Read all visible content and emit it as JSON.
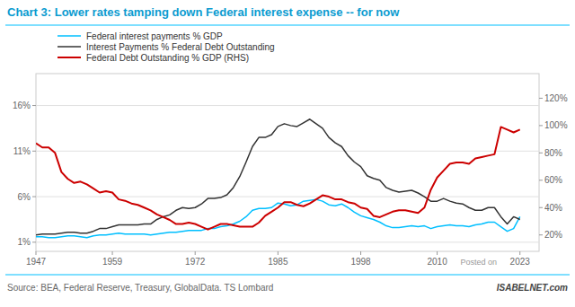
{
  "chart_data": {
    "type": "line",
    "title": "Chart 3: Lower rates tamping down Federal interest expense -- for now",
    "annotations": [
      "Posted on",
      "Source: BEA, Federal Reserve, Treasury, GlobalData. TS Lombard",
      "ISABELNET.com"
    ],
    "x": [
      1947,
      1948,
      1949,
      1950,
      1951,
      1952,
      1953,
      1954,
      1955,
      1956,
      1957,
      1958,
      1959,
      1960,
      1961,
      1962,
      1963,
      1964,
      1965,
      1966,
      1967,
      1968,
      1969,
      1970,
      1971,
      1972,
      1973,
      1974,
      1975,
      1976,
      1977,
      1978,
      1979,
      1980,
      1981,
      1982,
      1983,
      1984,
      1985,
      1986,
      1987,
      1988,
      1989,
      1990,
      1991,
      1992,
      1993,
      1994,
      1995,
      1996,
      1997,
      1998,
      1999,
      2000,
      2001,
      2002,
      2003,
      2004,
      2005,
      2006,
      2007,
      2008,
      2009,
      2010,
      2011,
      2012,
      2013,
      2014,
      2015,
      2016,
      2017,
      2018,
      2019,
      2020,
      2021,
      2022,
      2023
    ],
    "series": [
      {
        "name": "Federal interest payments % GDP",
        "color": "#00BFFF",
        "values": [
          1.6,
          1.6,
          1.5,
          1.5,
          1.6,
          1.7,
          1.7,
          1.6,
          1.5,
          1.7,
          1.8,
          1.8,
          1.9,
          2.0,
          1.9,
          1.9,
          1.9,
          1.9,
          1.8,
          1.9,
          2.0,
          2.1,
          2.1,
          2.2,
          2.3,
          2.3,
          2.3,
          2.5,
          2.5,
          2.7,
          2.8,
          3.0,
          3.3,
          3.8,
          4.5,
          4.7,
          4.7,
          4.8,
          5.3,
          5.2,
          5.0,
          5.1,
          5.5,
          5.6,
          5.7,
          5.5,
          5.1,
          5.0,
          5.2,
          4.8,
          4.3,
          3.9,
          3.7,
          3.5,
          3.2,
          2.8,
          2.6,
          2.6,
          2.7,
          2.8,
          2.7,
          2.8,
          2.5,
          2.7,
          2.8,
          2.9,
          2.8,
          2.8,
          2.7,
          2.9,
          3.0,
          3.2,
          3.2,
          2.7,
          2.2,
          2.5,
          3.8
        ]
      },
      {
        "name": "Interest Payments % Federal Debt Outstanding",
        "color": "#333333",
        "values": [
          1.8,
          1.9,
          1.9,
          1.9,
          2.0,
          2.1,
          2.1,
          2.0,
          2.0,
          2.2,
          2.5,
          2.5,
          2.7,
          2.9,
          2.9,
          2.9,
          2.9,
          3.0,
          3.0,
          3.5,
          3.8,
          4.0,
          4.5,
          4.8,
          4.7,
          4.8,
          5.2,
          5.8,
          5.8,
          5.9,
          6.2,
          7.0,
          8.2,
          9.8,
          11.5,
          12.5,
          12.5,
          12.8,
          13.7,
          14.0,
          13.8,
          13.7,
          14.1,
          14.5,
          14.0,
          13.5,
          12.5,
          11.9,
          11.5,
          10.5,
          9.8,
          9.3,
          8.3,
          8.0,
          7.8,
          7.0,
          6.7,
          6.5,
          6.6,
          6.7,
          6.4,
          6.0,
          5.5,
          5.5,
          5.8,
          5.5,
          5.3,
          5.2,
          4.8,
          4.5,
          4.5,
          4.8,
          4.8,
          3.8,
          3.0,
          3.8,
          3.5
        ]
      },
      {
        "name": "Federal Debt Outstanding % GDP (RHS)",
        "color": "#CC0000",
        "axis": "y2",
        "values": [
          87,
          84,
          84,
          80,
          66,
          61,
          58,
          59,
          57,
          54,
          51,
          52,
          51,
          46,
          45,
          43,
          42,
          40,
          38,
          35,
          33,
          31,
          28,
          28,
          29,
          28,
          26,
          24,
          26,
          28,
          28,
          27,
          26,
          26,
          26,
          29,
          34,
          37,
          40,
          44,
          44,
          42,
          41,
          43,
          46,
          49,
          48,
          46,
          46,
          44,
          43,
          40,
          39,
          34,
          33,
          35,
          37,
          38,
          38,
          37,
          36,
          40,
          53,
          62,
          67,
          72,
          73,
          73,
          72,
          76,
          77,
          78,
          79,
          99,
          97,
          95,
          97
        ]
      }
    ],
    "xlim": [
      1947,
      2026
    ],
    "xticks": [
      1947,
      1959,
      1972,
      1985,
      1998,
      2010,
      2023
    ],
    "ylim": [
      0.0,
      19.5
    ],
    "yticks": [
      {
        "value": 1,
        "label": "1%"
      },
      {
        "value": 6,
        "label": "6%"
      },
      {
        "value": 11,
        "label": "11%"
      },
      {
        "value": 16,
        "label": "16%"
      }
    ],
    "y2lim": [
      8,
      138
    ],
    "y2ticks": [
      {
        "value": 20,
        "label": "20%"
      },
      {
        "value": 40,
        "label": "40%"
      },
      {
        "value": 60,
        "label": "60%"
      },
      {
        "value": 80,
        "label": "80%"
      },
      {
        "value": 100,
        "label": "100%"
      },
      {
        "value": 120,
        "label": "120%"
      }
    ],
    "grid": true,
    "legend": "upper left"
  }
}
